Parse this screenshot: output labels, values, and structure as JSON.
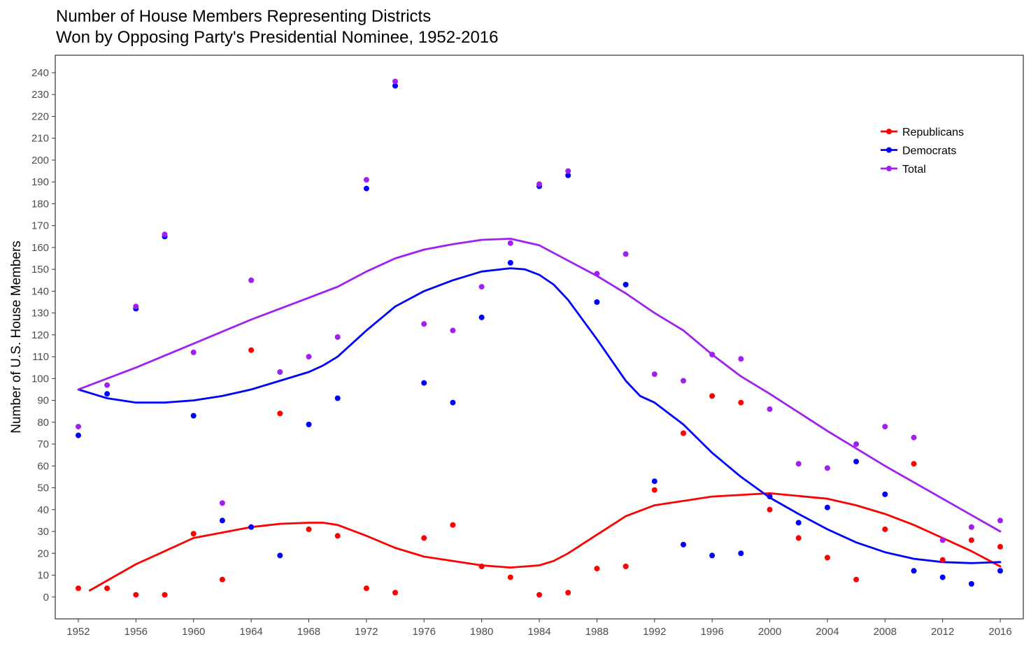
{
  "chart_data": {
    "type": "scatter",
    "title": [
      "Number of House Members Representing Districts",
      "Won by Opposing Party's Presidential Nominee, 1952-2016"
    ],
    "xlabel": "",
    "ylabel": "Number of U.S. House Members",
    "xlim": [
      1950.4,
      2017.6
    ],
    "ylim": [
      -10,
      248
    ],
    "xticks": [
      1952,
      1956,
      1960,
      1964,
      1968,
      1972,
      1976,
      1980,
      1984,
      1988,
      1992,
      1996,
      2000,
      2004,
      2008,
      2012,
      2016
    ],
    "yticks": [
      0,
      10,
      20,
      30,
      40,
      50,
      60,
      70,
      80,
      90,
      100,
      110,
      120,
      130,
      140,
      150,
      160,
      170,
      180,
      190,
      200,
      210,
      220,
      230,
      240
    ],
    "grid": false,
    "legend_position": "top-right",
    "x": [
      1952,
      1954,
      1956,
      1958,
      1960,
      1962,
      1964,
      1966,
      1968,
      1970,
      1972,
      1974,
      1976,
      1978,
      1980,
      1982,
      1984,
      1986,
      1988,
      1990,
      1992,
      1994,
      1996,
      1998,
      2000,
      2002,
      2004,
      2006,
      2008,
      2010,
      2012,
      2014,
      2016
    ],
    "series": [
      {
        "name": "Republicans",
        "color": "#ff0000",
        "values": [
          4,
          4,
          1,
          1,
          29,
          8,
          113,
          84,
          31,
          28,
          4,
          2,
          27,
          33,
          14,
          9,
          1,
          2,
          13,
          14,
          49,
          75,
          92,
          89,
          40,
          27,
          18,
          8,
          31,
          61,
          17,
          26,
          23
        ],
        "trend_x": [
          1952.8,
          1956,
          1960,
          1964,
          1966,
          1968,
          1969,
          1970,
          1972,
          1974,
          1976,
          1978,
          1980,
          1982,
          1984,
          1985,
          1986,
          1988,
          1990,
          1992,
          1996,
          2000,
          2004,
          2006,
          2008,
          2010,
          2012,
          2014,
          2016
        ],
        "trend_y": [
          3,
          15,
          27,
          32,
          33.5,
          34,
          34,
          33,
          28,
          22.5,
          18.5,
          16.5,
          14.5,
          13.5,
          14.5,
          16.5,
          20,
          28.5,
          37,
          42,
          46,
          47.5,
          45,
          42,
          38,
          33,
          27,
          21,
          14
        ]
      },
      {
        "name": "Democrats",
        "color": "#0000ff",
        "values": [
          74,
          93,
          132,
          165,
          83,
          35,
          32,
          19,
          79,
          91,
          187,
          234,
          98,
          89,
          128,
          153,
          188,
          193,
          135,
          143,
          53,
          24,
          19,
          20,
          46,
          34,
          41,
          62,
          47,
          12,
          9,
          6,
          12
        ],
        "trend_x": [
          1952,
          1954,
          1956,
          1958,
          1960,
          1962,
          1964,
          1966,
          1968,
          1969,
          1970,
          1972,
          1974,
          1976,
          1978,
          1980,
          1982,
          1983,
          1984,
          1985,
          1986,
          1988,
          1990,
          1991,
          1992,
          1994,
          1996,
          1998,
          2000,
          2002,
          2004,
          2006,
          2008,
          2010,
          2012,
          2014,
          2016
        ],
        "trend_y": [
          95,
          91,
          89,
          89,
          90,
          92,
          95,
          99,
          103,
          106,
          110,
          122,
          133,
          140,
          145,
          149,
          150.5,
          150,
          147.5,
          143,
          136,
          118,
          99,
          92,
          89,
          79,
          66,
          55,
          45.5,
          38,
          31,
          25,
          20.5,
          17.5,
          16,
          15.5,
          16
        ]
      },
      {
        "name": "Total",
        "color": "#a020f0",
        "values": [
          78,
          97,
          133,
          166,
          112,
          43,
          145,
          103,
          110,
          119,
          191,
          236,
          125,
          122,
          142,
          162,
          189,
          195,
          148,
          157,
          102,
          99,
          111,
          109,
          86,
          61,
          59,
          70,
          78,
          73,
          26,
          32,
          35
        ],
        "trend_x": [
          1952,
          1956,
          1960,
          1964,
          1968,
          1970,
          1972,
          1974,
          1976,
          1978,
          1980,
          1982,
          1984,
          1986,
          1988,
          1990,
          1992,
          1994,
          1996,
          1998,
          2000,
          2004,
          2008,
          2012,
          2016
        ],
        "trend_y": [
          95,
          105,
          116,
          127,
          137,
          142,
          149,
          155,
          159,
          161.5,
          163.5,
          164,
          161,
          154,
          147,
          139,
          130,
          122,
          111,
          101,
          93,
          76,
          60,
          45,
          30
        ]
      }
    ]
  }
}
